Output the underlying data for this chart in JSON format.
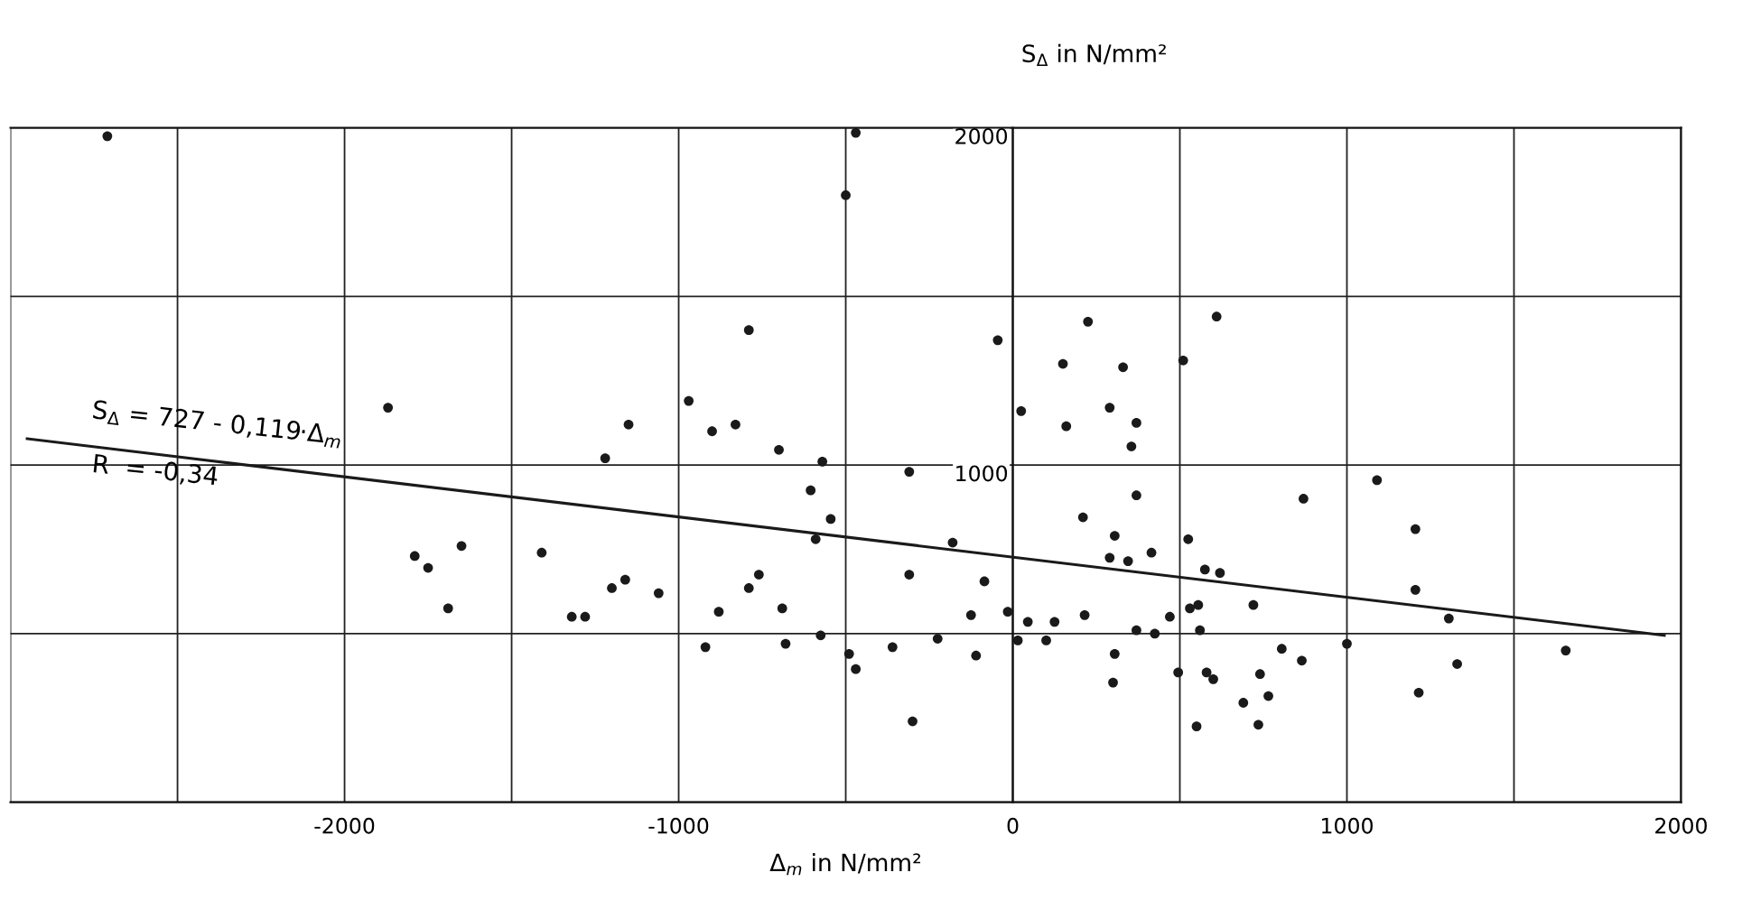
{
  "chart_data": {
    "type": "scatter",
    "xlabel": "Δ$_{m}$ in N/mm²",
    "ylabel": "S$_{Δ}$ in N/mm²",
    "xlim": [
      -3000,
      2000
    ],
    "ylim": [
      0,
      2000
    ],
    "xticks": [
      {
        "value": -3000,
        "label": null
      },
      {
        "value": -2500,
        "label": null
      },
      -2000,
      {
        "value": -1500,
        "label": null
      },
      -1000,
      {
        "value": -500,
        "label": null
      },
      0,
      {
        "value": 500,
        "label": null
      },
      1000,
      {
        "value": 1500,
        "label": null
      },
      2000
    ],
    "yticks": [
      {
        "value": 0,
        "label": null
      },
      {
        "value": 500,
        "label": null
      },
      1000,
      {
        "value": 1500,
        "label": null
      },
      2000
    ],
    "grid": true,
    "series": [
      {
        "marker": "circle",
        "color": "#1a1a1a",
        "x": [
          -2710,
          -470,
          -500,
          -1870,
          -790,
          -1150,
          -970,
          -1220,
          -900,
          -830,
          -700,
          -570,
          -605,
          -545,
          -590,
          -1790,
          -1750,
          -1650,
          -1690,
          -1410,
          -1320,
          -1280,
          -1200,
          -1160,
          -1060,
          -920,
          -880,
          -790,
          -760,
          -690,
          -680,
          -575,
          -490,
          -470,
          -360,
          -310,
          -310,
          -300,
          -180,
          -225,
          -125,
          -110,
          -85,
          -45,
          -15,
          25,
          15,
          45,
          100,
          125,
          150,
          225,
          160,
          210,
          215,
          290,
          330,
          305,
          290,
          345,
          305,
          300,
          355,
          370,
          370,
          415,
          370,
          425,
          470,
          495,
          510,
          610,
          525,
          530,
          555,
          575,
          620,
          560,
          580,
          600,
          550,
          690,
          720,
          740,
          735,
          765,
          805,
          865,
          870,
          1000,
          1090,
          1205,
          1205,
          1215,
          1305,
          1330,
          1655
        ],
        "values": [
          1975,
          1985,
          1800,
          1170,
          1400,
          1120,
          1190,
          1020,
          1100,
          1120,
          1045,
          1010,
          925,
          840,
          780,
          730,
          695,
          760,
          575,
          740,
          550,
          550,
          635,
          660,
          620,
          460,
          565,
          635,
          675,
          575,
          470,
          495,
          440,
          395,
          460,
          980,
          675,
          240,
          770,
          485,
          555,
          435,
          655,
          1370,
          565,
          1160,
          480,
          535,
          480,
          535,
          1300,
          1425,
          1115,
          845,
          555,
          1170,
          1290,
          790,
          725,
          715,
          440,
          355,
          1055,
          1125,
          910,
          740,
          510,
          500,
          550,
          385,
          1310,
          1440,
          780,
          575,
          585,
          690,
          680,
          510,
          385,
          365,
          225,
          295,
          585,
          380,
          230,
          315,
          455,
          420,
          900,
          470,
          955,
          810,
          630,
          325,
          545,
          410,
          450
        ]
      },
      {
        "type": "line",
        "color": "#1a1a1a",
        "x": [
          -2950,
          1950
        ],
        "values": [
          1078,
          495
        ]
      }
    ],
    "annotations": [
      "S$_{Δ}$ = 727 - 0,119·Δ$_{m}$",
      "R  = -0,34"
    ]
  }
}
